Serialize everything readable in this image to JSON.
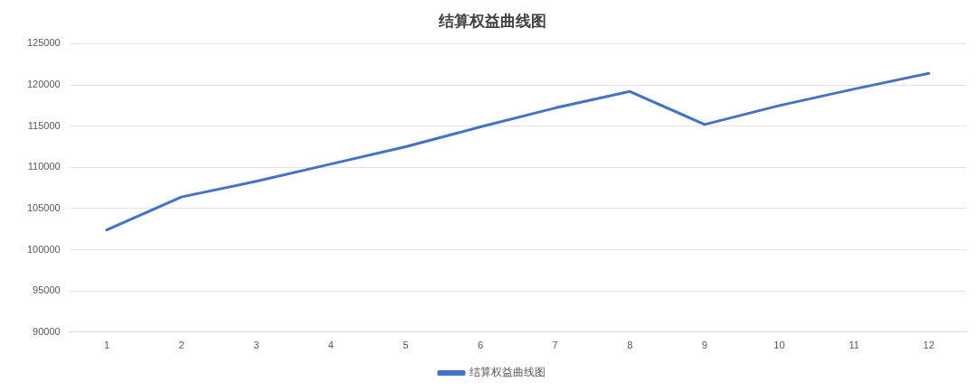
{
  "chart_data": {
    "type": "line",
    "title": "结算权益曲线图",
    "categories": [
      "1",
      "2",
      "3",
      "4",
      "5",
      "6",
      "7",
      "8",
      "9",
      "10",
      "11",
      "12"
    ],
    "series": [
      {
        "name": "结算权益曲线图",
        "color": "#4472c4",
        "values": [
          102400,
          106400,
          108300,
          110400,
          112500,
          114900,
          117200,
          119200,
          115200,
          117500,
          119500,
          121400
        ]
      }
    ],
    "ylim": [
      90000,
      125000
    ],
    "yticks": [
      90000,
      95000,
      100000,
      105000,
      110000,
      115000,
      120000,
      125000
    ],
    "grid": "y",
    "legend": "bottom",
    "marker": "none",
    "line_style": "solid"
  }
}
